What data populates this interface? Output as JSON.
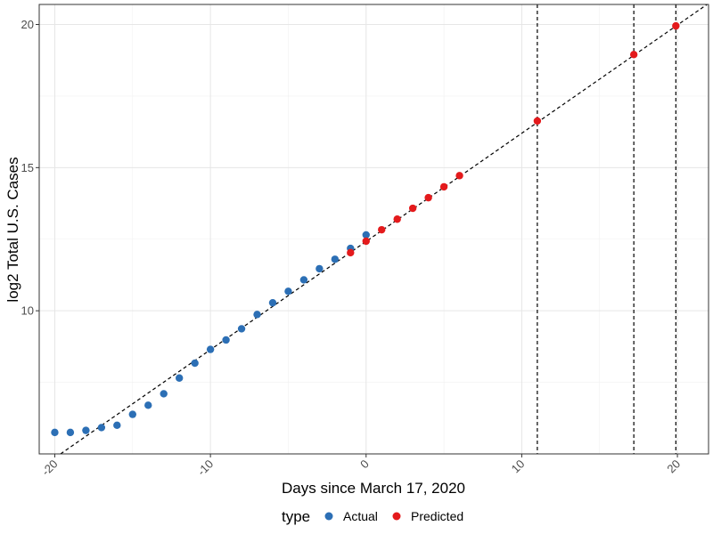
{
  "chart_data": {
    "type": "scatter",
    "xlabel": "Days since March 17, 2020",
    "ylabel": "log2 Total U.S. Cases",
    "xlim": [
      -21,
      22
    ],
    "ylim": [
      5,
      20.7
    ],
    "x_ticks": [
      -20,
      -10,
      0,
      10,
      20
    ],
    "x_tick_labels": [
      "-20",
      "-10",
      "0",
      "10",
      "20"
    ],
    "y_ticks": [
      10,
      15,
      20
    ],
    "y_tick_labels": [
      "10",
      "15",
      "20"
    ],
    "grid": true,
    "legend_position": "bottom",
    "legend_title": "type",
    "series": [
      {
        "name": "Actual",
        "color": "#2c6fb5",
        "x": [
          -20,
          -19,
          -18,
          -17,
          -16,
          -15,
          -14,
          -13,
          -12,
          -11,
          -10,
          -9,
          -8,
          -7,
          -6,
          -5,
          -4,
          -3,
          -2,
          -1,
          0
        ],
        "y": [
          5.75,
          5.75,
          5.82,
          5.92,
          6.0,
          6.38,
          6.7,
          7.1,
          7.65,
          8.17,
          8.65,
          8.98,
          9.37,
          9.87,
          10.28,
          10.68,
          11.08,
          11.47,
          11.8,
          12.18,
          12.65
        ]
      },
      {
        "name": "Predicted",
        "color": "#e41a1c",
        "x": [
          -1,
          0,
          1,
          2,
          3,
          4,
          5,
          6,
          11,
          17.2,
          19.9
        ],
        "y": [
          12.03,
          12.43,
          12.83,
          13.2,
          13.58,
          13.95,
          14.33,
          14.72,
          16.63,
          18.95,
          19.95
        ]
      }
    ],
    "trend_line": {
      "style": "dashed",
      "color": "#000000",
      "intercept": 12.42,
      "slope": 0.378
    },
    "vertical_lines": {
      "style": "dashed",
      "color": "#000000",
      "x": [
        11,
        17.2,
        19.9
      ]
    }
  }
}
